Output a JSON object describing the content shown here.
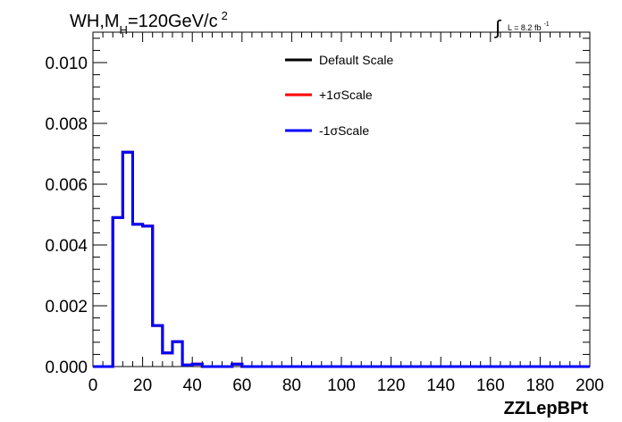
{
  "chart_data": {
    "type": "line",
    "title_parts": {
      "prefix": "WH,M",
      "sub": "H",
      "value": "=120GeV/c",
      "sup": "2"
    },
    "luminosity": {
      "label": "L = 8.2 fb",
      "sup": "-1"
    },
    "xlabel": "ZZLepBPt",
    "ylabel": "",
    "xlim": [
      0,
      200
    ],
    "ylim": [
      0,
      0.011
    ],
    "x_ticks": [
      "0",
      "20",
      "40",
      "60",
      "80",
      "100",
      "120",
      "140",
      "160",
      "180",
      "200"
    ],
    "y_ticks": [
      "0.000",
      "0.002",
      "0.004",
      "0.006",
      "0.008",
      "0.010"
    ],
    "legend_position": "top-center",
    "bin_width": 4,
    "bin_edges_start": 0,
    "series": [
      {
        "name": "Default Scale",
        "color": "#000000",
        "values": [
          0,
          0,
          0.0049,
          0.00705,
          0.00468,
          0.00462,
          0.00135,
          0.00045,
          0.00082,
          5e-05,
          8e-05,
          0,
          0,
          0,
          8e-05,
          0,
          0,
          0,
          0,
          0,
          0,
          0,
          0,
          0,
          0,
          0,
          0,
          0,
          0,
          0,
          0,
          0,
          0,
          0,
          0,
          0,
          0,
          0,
          0,
          0,
          0,
          0,
          0,
          0,
          0,
          0,
          0,
          0,
          0,
          0
        ]
      },
      {
        "name": "+1σScale",
        "color": "#ff0000",
        "values": [
          0,
          0,
          0.0049,
          0.00705,
          0.00468,
          0.00462,
          0.00135,
          0.00045,
          0.00082,
          5e-05,
          8e-05,
          0,
          0,
          0,
          8e-05,
          0,
          0,
          0,
          0,
          0,
          0,
          0,
          0,
          0,
          0,
          0,
          0,
          0,
          0,
          0,
          0,
          0,
          0,
          0,
          0,
          0,
          0,
          0,
          0,
          0,
          0,
          0,
          0,
          0,
          0,
          0,
          0,
          0,
          0,
          0
        ]
      },
      {
        "name": "-1σScale",
        "color": "#0000ff",
        "values": [
          0,
          0,
          0.0049,
          0.00705,
          0.00468,
          0.00462,
          0.00135,
          0.00045,
          0.00082,
          5e-05,
          8e-05,
          0,
          0,
          0,
          8e-05,
          0,
          0,
          0,
          0,
          0,
          0,
          0,
          0,
          0,
          0,
          0,
          0,
          0,
          0,
          0,
          0,
          0,
          0,
          0,
          0,
          0,
          0,
          0,
          0,
          0,
          0,
          0,
          0,
          0,
          0,
          0,
          0,
          0,
          0,
          0
        ]
      }
    ]
  }
}
